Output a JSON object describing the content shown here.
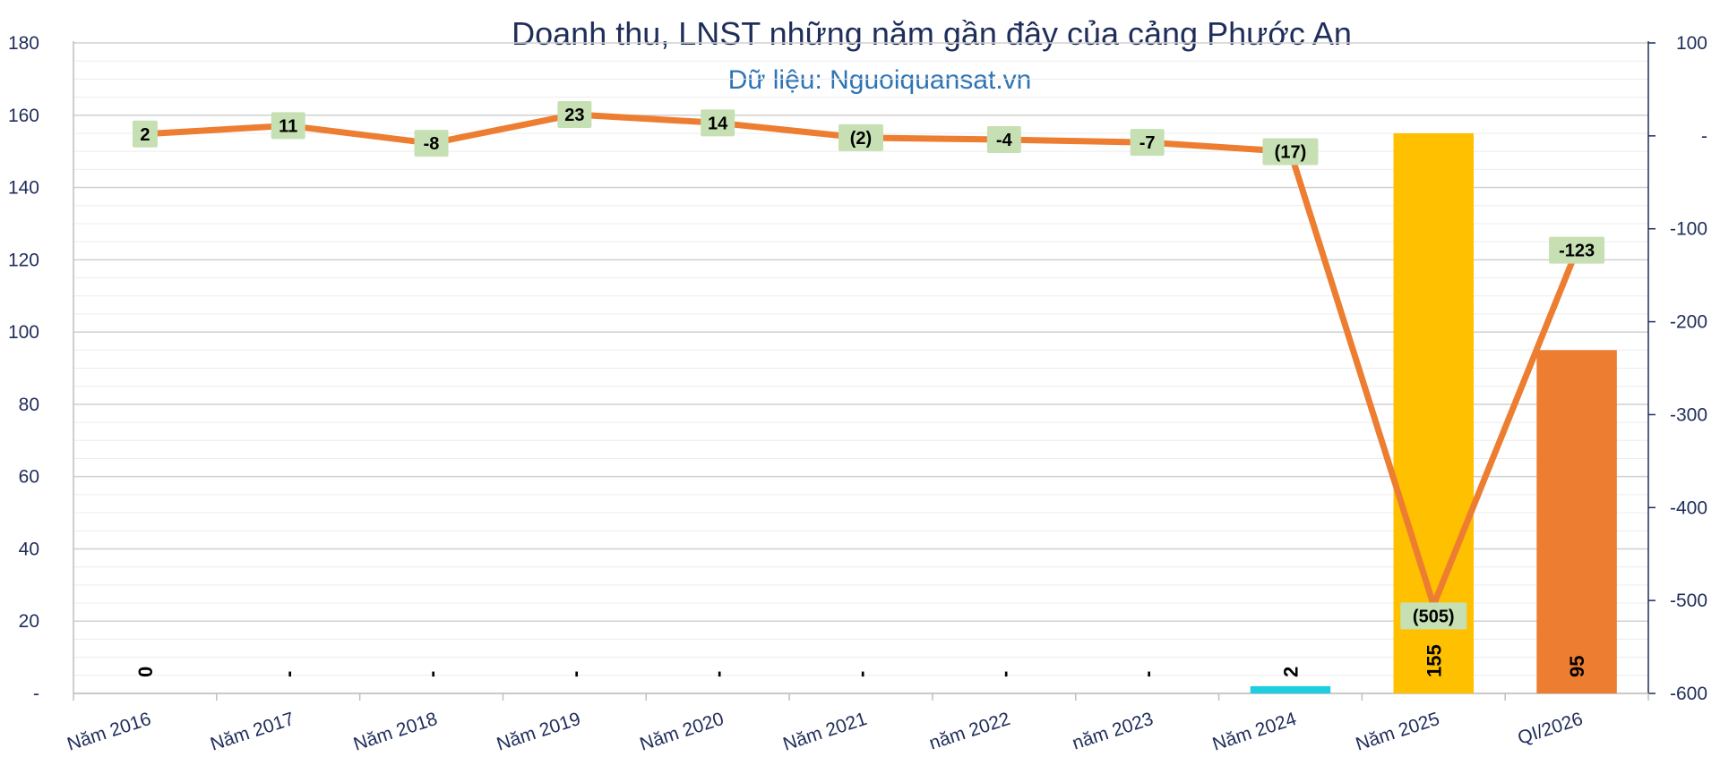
{
  "chart_data": {
    "type": "bar",
    "title": "Doanh thu, LNST những năm gần đây của cảng Phước An",
    "subtitle": "Dữ liệu: Nguoiquansat.vn",
    "categories": [
      "Năm 2016",
      "Năm 2017",
      "Năm 2018",
      "Năm 2019",
      "Năm 2020",
      "Năm 2021",
      "năm 2022",
      "năm 2023",
      "Năm 2024",
      "Năm 2025",
      "QI/2026"
    ],
    "series": [
      {
        "type": "bar",
        "axis": "left",
        "values": [
          0,
          0,
          0,
          0,
          0,
          0,
          0,
          0,
          2,
          155,
          95
        ],
        "labels": [
          "0",
          "-",
          "-",
          "-",
          "-",
          "-",
          "-",
          "-",
          "2",
          "155",
          "95"
        ],
        "colors": [
          "#00c8d8",
          "#00c8d8",
          "#00c8d8",
          "#00c8d8",
          "#00c8d8",
          "#00c8d8",
          "#00c8d8",
          "#00c8d8",
          "#1ccfe0",
          "#ffc000",
          "#ed7d31"
        ]
      },
      {
        "type": "line",
        "axis": "right",
        "values": [
          2,
          11,
          -8,
          23,
          14,
          -2,
          -4,
          -7,
          -17,
          -505,
          -123
        ],
        "labels": [
          "2",
          "11",
          "-8",
          "23",
          "14",
          "(2)",
          "-4",
          "-7",
          "(17)",
          "(505)",
          "-123"
        ],
        "color": "#ed7d31"
      }
    ],
    "y_left": {
      "ylim": [
        0,
        180
      ],
      "ticks": [
        0,
        20,
        40,
        60,
        80,
        100,
        120,
        140,
        160,
        180
      ],
      "tick_labels": [
        "-",
        "20",
        "40",
        "60",
        "80",
        "100",
        "120",
        "140",
        "160",
        "180"
      ]
    },
    "y_right": {
      "ylim": [
        -600,
        100
      ],
      "ticks": [
        -600,
        -500,
        -400,
        -300,
        -200,
        -100,
        0,
        100
      ],
      "tick_labels": [
        "-600",
        "-500",
        "-400",
        "-300",
        "-200",
        "-100",
        "-",
        "100"
      ]
    },
    "grid": true,
    "legend": "none",
    "colors": {
      "axis_text": "#1f2d5a",
      "grid": "#d9d9d9",
      "label_box": "#c6e0b4"
    }
  }
}
